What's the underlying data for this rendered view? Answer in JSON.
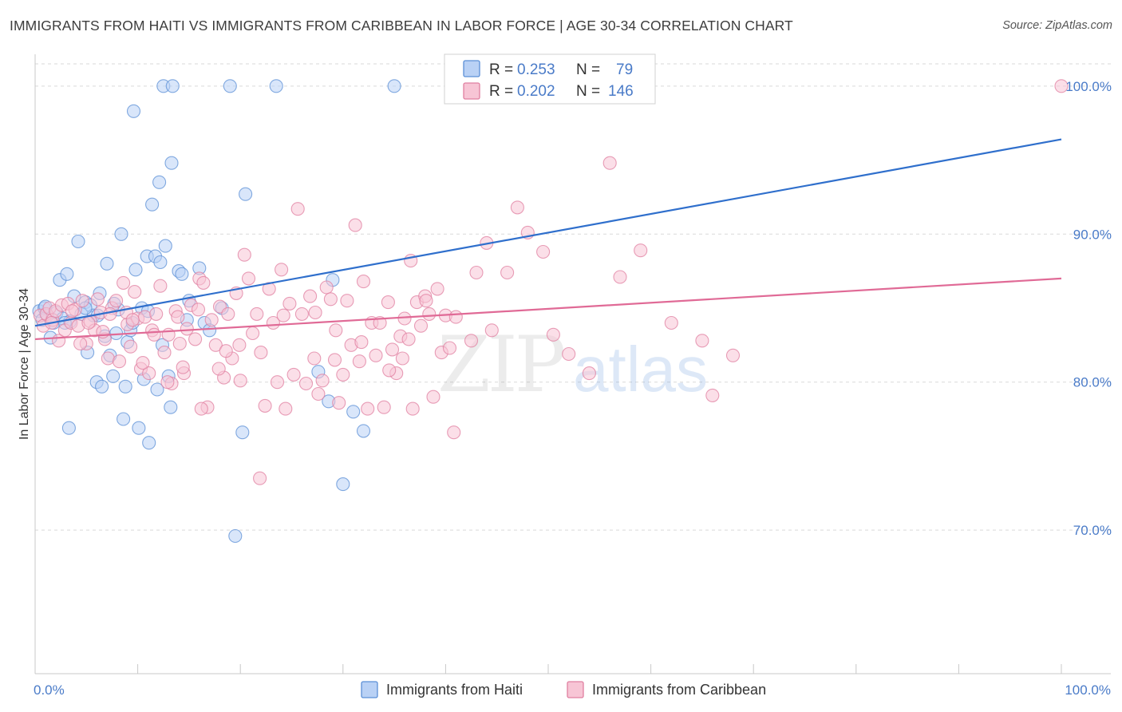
{
  "title": "IMMIGRANTS FROM HAITI VS IMMIGRANTS FROM CARIBBEAN IN LABOR FORCE | AGE 30-34 CORRELATION CHART",
  "source": "Source: ZipAtlas.com",
  "watermark": {
    "zip": "ZIP",
    "atlas": "atlas"
  },
  "legend": {
    "rows": [
      {
        "r_label": "R =",
        "r_value": "0.253",
        "n_label": "N =",
        "n_value": "79"
      },
      {
        "r_label": "R =",
        "r_value": "0.202",
        "n_label": "N =",
        "n_value": "146"
      }
    ]
  },
  "colors": {
    "haiti_fill": "#b9d1f5",
    "haiti_stroke": "#5b8fd6",
    "haiti_line": "#2f6fcc",
    "carib_fill": "#f7c5d5",
    "carib_stroke": "#e07fa0",
    "carib_line": "#e06a96",
    "tick": "#4a7bc8",
    "grid": "#d9d9d9"
  },
  "chart_data": {
    "type": "scatter",
    "title": "IMMIGRANTS FROM HAITI VS IMMIGRANTS FROM CARIBBEAN IN LABOR FORCE | AGE 30-34 CORRELATION CHART",
    "xlabel": "",
    "ylabel": "In Labor Force | Age 30-34",
    "xlim": [
      0,
      100
    ],
    "ylim": [
      60.3,
      101.5
    ],
    "x_tick_labels": [
      "0.0%",
      "100.0%"
    ],
    "y_ticks": [
      100,
      90,
      80,
      70
    ],
    "y_tick_labels": [
      "100.0%",
      "90.0%",
      "80.0%",
      "70.0%"
    ],
    "series": [
      {
        "name": "Immigrants from Haiti",
        "r": 0.253,
        "n": 79,
        "trend": {
          "x": [
            0,
            100
          ],
          "y": [
            83.8,
            96.4
          ]
        },
        "points": [
          [
            0.4,
            84.8
          ],
          [
            0.7,
            84.2
          ],
          [
            0.9,
            85.0
          ],
          [
            1.2,
            84.5
          ],
          [
            1.5,
            83.0
          ],
          [
            1.8,
            84.0
          ],
          [
            2.1,
            84.7
          ],
          [
            2.4,
            86.9
          ],
          [
            2.7,
            84.3
          ],
          [
            3.1,
            87.3
          ],
          [
            3.4,
            84.1
          ],
          [
            3.8,
            85.8
          ],
          [
            4.2,
            89.5
          ],
          [
            4.5,
            84.6
          ],
          [
            4.9,
            85.4
          ],
          [
            5.1,
            82.0
          ],
          [
            5.4,
            85.2
          ],
          [
            5.7,
            84.5
          ],
          [
            6.0,
            80.0
          ],
          [
            6.3,
            86.0
          ],
          [
            6.5,
            79.7
          ],
          [
            6.8,
            83.1
          ],
          [
            7.0,
            88.0
          ],
          [
            7.3,
            81.8
          ],
          [
            7.6,
            80.4
          ],
          [
            7.9,
            83.3
          ],
          [
            8.1,
            84.9
          ],
          [
            8.4,
            90.0
          ],
          [
            8.6,
            77.5
          ],
          [
            8.8,
            79.7
          ],
          [
            9.0,
            82.7
          ],
          [
            9.3,
            83.5
          ],
          [
            9.5,
            84.0
          ],
          [
            9.8,
            87.6
          ],
          [
            10.1,
            76.9
          ],
          [
            10.4,
            85.0
          ],
          [
            10.6,
            80.2
          ],
          [
            10.9,
            88.5
          ],
          [
            11.1,
            75.9
          ],
          [
            11.4,
            92.0
          ],
          [
            11.7,
            88.5
          ],
          [
            11.9,
            79.5
          ],
          [
            12.1,
            93.5
          ],
          [
            12.4,
            82.5
          ],
          [
            12.7,
            89.2
          ],
          [
            13.0,
            80.4
          ],
          [
            13.2,
            78.3
          ],
          [
            14.0,
            87.5
          ],
          [
            14.3,
            87.3
          ],
          [
            15.0,
            85.5
          ],
          [
            12.5,
            100.0
          ],
          [
            13.4,
            100.0
          ],
          [
            19.0,
            100.0
          ],
          [
            23.5,
            100.0
          ],
          [
            35.0,
            100.0
          ],
          [
            9.6,
            98.3
          ],
          [
            13.3,
            94.8
          ],
          [
            20.5,
            92.7
          ],
          [
            12.2,
            88.1
          ],
          [
            16.0,
            87.7
          ],
          [
            27.6,
            80.7
          ],
          [
            28.6,
            78.7
          ],
          [
            30.0,
            73.1
          ],
          [
            20.2,
            76.6
          ],
          [
            29.0,
            86.9
          ],
          [
            31.0,
            78.0
          ],
          [
            32.0,
            76.7
          ],
          [
            19.5,
            69.6
          ],
          [
            16.5,
            84.0
          ],
          [
            17.0,
            83.5
          ],
          [
            3.3,
            76.9
          ],
          [
            2.9,
            84.0
          ],
          [
            11.0,
            84.8
          ],
          [
            4.9,
            85.0
          ],
          [
            6.1,
            84.5
          ],
          [
            7.7,
            85.3
          ],
          [
            14.8,
            84.2
          ],
          [
            18.2,
            85.0
          ],
          [
            1.0,
            85.1
          ]
        ]
      },
      {
        "name": "Immigrants from Caribbean",
        "r": 0.202,
        "n": 146,
        "trend": {
          "x": [
            0,
            100
          ],
          "y": [
            82.9,
            87.0
          ]
        },
        "points": [
          [
            0.5,
            84.5
          ],
          [
            0.8,
            83.8
          ],
          [
            1.1,
            84.6
          ],
          [
            1.4,
            85.0
          ],
          [
            1.7,
            84.2
          ],
          [
            2.0,
            84.8
          ],
          [
            2.3,
            82.8
          ],
          [
            2.6,
            85.2
          ],
          [
            2.9,
            83.5
          ],
          [
            3.2,
            85.3
          ],
          [
            3.5,
            84.0
          ],
          [
            3.9,
            84.9
          ],
          [
            4.2,
            83.8
          ],
          [
            4.6,
            85.5
          ],
          [
            5.0,
            82.6
          ],
          [
            5.4,
            84.1
          ],
          [
            5.8,
            83.5
          ],
          [
            6.1,
            85.6
          ],
          [
            6.4,
            84.7
          ],
          [
            6.8,
            82.9
          ],
          [
            7.1,
            81.6
          ],
          [
            7.5,
            85.0
          ],
          [
            7.9,
            85.5
          ],
          [
            8.2,
            81.4
          ],
          [
            8.6,
            86.7
          ],
          [
            9.0,
            83.9
          ],
          [
            9.3,
            82.4
          ],
          [
            9.7,
            86.1
          ],
          [
            10.0,
            84.3
          ],
          [
            10.3,
            80.9
          ],
          [
            10.7,
            84.4
          ],
          [
            11.1,
            80.6
          ],
          [
            11.4,
            83.5
          ],
          [
            11.8,
            84.6
          ],
          [
            12.2,
            86.5
          ],
          [
            12.6,
            82.0
          ],
          [
            13.0,
            83.2
          ],
          [
            13.3,
            79.9
          ],
          [
            13.7,
            84.8
          ],
          [
            14.1,
            82.6
          ],
          [
            14.5,
            80.6
          ],
          [
            14.8,
            83.6
          ],
          [
            15.2,
            85.2
          ],
          [
            15.6,
            82.9
          ],
          [
            16.0,
            87.0
          ],
          [
            16.4,
            86.7
          ],
          [
            16.8,
            78.3
          ],
          [
            17.2,
            84.2
          ],
          [
            17.6,
            82.5
          ],
          [
            18.0,
            85.1
          ],
          [
            18.4,
            80.3
          ],
          [
            18.8,
            84.6
          ],
          [
            19.2,
            81.6
          ],
          [
            19.6,
            86.0
          ],
          [
            20.0,
            80.1
          ],
          [
            20.4,
            88.6
          ],
          [
            20.8,
            87.0
          ],
          [
            21.2,
            83.3
          ],
          [
            21.6,
            84.6
          ],
          [
            22.0,
            82.0
          ],
          [
            22.4,
            78.4
          ],
          [
            22.8,
            86.3
          ],
          [
            23.2,
            84.0
          ],
          [
            23.6,
            80.0
          ],
          [
            24.0,
            87.6
          ],
          [
            24.4,
            78.2
          ],
          [
            24.8,
            85.3
          ],
          [
            25.2,
            80.5
          ],
          [
            25.6,
            91.7
          ],
          [
            26.0,
            84.6
          ],
          [
            26.4,
            79.9
          ],
          [
            26.8,
            85.8
          ],
          [
            27.2,
            81.6
          ],
          [
            27.6,
            79.2
          ],
          [
            28.0,
            80.1
          ],
          [
            28.4,
            86.4
          ],
          [
            28.8,
            85.6
          ],
          [
            29.2,
            81.5
          ],
          [
            29.6,
            78.6
          ],
          [
            30.0,
            80.5
          ],
          [
            30.4,
            85.5
          ],
          [
            30.8,
            82.5
          ],
          [
            31.2,
            90.6
          ],
          [
            31.6,
            81.4
          ],
          [
            32.0,
            86.8
          ],
          [
            32.4,
            78.2
          ],
          [
            32.8,
            84.0
          ],
          [
            33.2,
            81.8
          ],
          [
            33.6,
            84.0
          ],
          [
            34.0,
            78.3
          ],
          [
            34.4,
            85.4
          ],
          [
            34.8,
            82.2
          ],
          [
            35.2,
            80.6
          ],
          [
            35.6,
            83.1
          ],
          [
            36.0,
            84.3
          ],
          [
            36.4,
            82.9
          ],
          [
            36.8,
            78.2
          ],
          [
            37.2,
            85.4
          ],
          [
            37.6,
            83.8
          ],
          [
            38.0,
            85.8
          ],
          [
            38.4,
            84.6
          ],
          [
            38.8,
            79.0
          ],
          [
            39.2,
            86.3
          ],
          [
            39.6,
            82.0
          ],
          [
            40.0,
            84.5
          ],
          [
            40.4,
            82.3
          ],
          [
            40.8,
            76.6
          ],
          [
            43.0,
            87.4
          ],
          [
            44.0,
            89.4
          ],
          [
            46.0,
            87.4
          ],
          [
            47.0,
            91.8
          ],
          [
            48.0,
            90.1
          ],
          [
            49.5,
            88.8
          ],
          [
            50.5,
            83.2
          ],
          [
            52.0,
            81.9
          ],
          [
            54.0,
            80.6
          ],
          [
            56.0,
            94.8
          ],
          [
            57.0,
            87.1
          ],
          [
            59.0,
            88.9
          ],
          [
            62.0,
            84.0
          ],
          [
            65.0,
            82.8
          ],
          [
            66.0,
            79.1
          ],
          [
            68.0,
            81.8
          ],
          [
            13.9,
            84.4
          ],
          [
            16.2,
            78.2
          ],
          [
            18.6,
            82.1
          ],
          [
            21.9,
            73.5
          ],
          [
            24.2,
            84.5
          ],
          [
            27.3,
            84.7
          ],
          [
            29.3,
            83.5
          ],
          [
            31.8,
            82.7
          ],
          [
            34.5,
            80.8
          ],
          [
            36.6,
            88.2
          ],
          [
            38.1,
            85.5
          ],
          [
            41.0,
            84.4
          ],
          [
            42.5,
            82.8
          ],
          [
            1.6,
            84.0
          ],
          [
            3.6,
            84.8
          ],
          [
            4.4,
            82.6
          ],
          [
            5.2,
            84.0
          ],
          [
            6.6,
            83.4
          ],
          [
            7.3,
            84.6
          ],
          [
            8.9,
            84.7
          ],
          [
            9.5,
            84.2
          ],
          [
            10.5,
            81.3
          ],
          [
            11.6,
            83.2
          ],
          [
            12.9,
            80.0
          ],
          [
            14.4,
            81.0
          ],
          [
            15.9,
            84.9
          ],
          [
            17.9,
            80.9
          ],
          [
            19.9,
            82.5
          ],
          [
            100.0,
            100.0
          ],
          [
            35.8,
            81.6
          ],
          [
            44.5,
            83.5
          ]
        ]
      }
    ]
  },
  "bottom_legend": [
    "Immigrants from Haiti",
    "Immigrants from Caribbean"
  ]
}
